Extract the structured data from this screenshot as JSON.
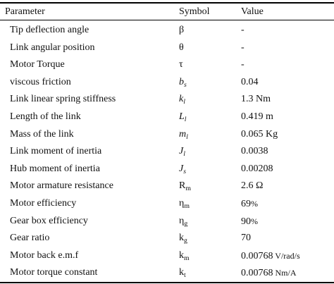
{
  "table": {
    "headers": {
      "parameter": "Parameter",
      "symbol": "Symbol",
      "value": "Value"
    },
    "rows": [
      {
        "parameter": "Tip deflection angle",
        "symbol": "β",
        "sub": "",
        "value": "-",
        "unit": ""
      },
      {
        "parameter": "Link angular position",
        "symbol": "θ",
        "sub": "",
        "value": "-",
        "unit": ""
      },
      {
        "parameter": "Motor Torque",
        "symbol": "τ",
        "sub": "",
        "value": "-",
        "unit": ""
      },
      {
        "parameter": "viscous friction",
        "symbol": "b",
        "sub": "s",
        "value": "0.04",
        "unit": ""
      },
      {
        "parameter": "Link linear spring stiffness",
        "symbol": "k",
        "sub": "l",
        "value": "1.3 Nm",
        "unit": ""
      },
      {
        "parameter": "Length of the link",
        "symbol": "L",
        "sub": "l",
        "value": "0.419 m",
        "unit": ""
      },
      {
        "parameter": "Mass of the link",
        "symbol": "m",
        "sub": "l",
        "value": "0.065 Kg",
        "unit": ""
      },
      {
        "parameter": "Link moment of inertia",
        "symbol": "J",
        "sub": "l",
        "value": "0.0038",
        "unit": ""
      },
      {
        "parameter": "Hub moment of inertia",
        "symbol": "J",
        "sub": "s",
        "value": "0.00208",
        "unit": ""
      },
      {
        "parameter": "Motor armature resistance",
        "symbol": "R",
        "sub": "m",
        "value": "2.6 Ω",
        "unit": ""
      },
      {
        "parameter": "Motor efficiency",
        "symbol": "η",
        "sub": "m",
        "value": "69",
        "unit": "%"
      },
      {
        "parameter": "Gear box efficiency",
        "symbol": "η",
        "sub": "g",
        "value": "90",
        "unit": "%"
      },
      {
        "parameter": "Gear ratio",
        "symbol": "k",
        "sub": "g",
        "value": "70",
        "unit": ""
      },
      {
        "parameter": "Motor back e.m.f",
        "symbol": "k",
        "sub": "m",
        "value": "0.00768",
        "unit": " V/rad/s"
      },
      {
        "parameter": "Motor torque constant",
        "symbol": "k",
        "sub": "t",
        "value": "0.00768",
        "unit": " Nm/A"
      }
    ]
  }
}
